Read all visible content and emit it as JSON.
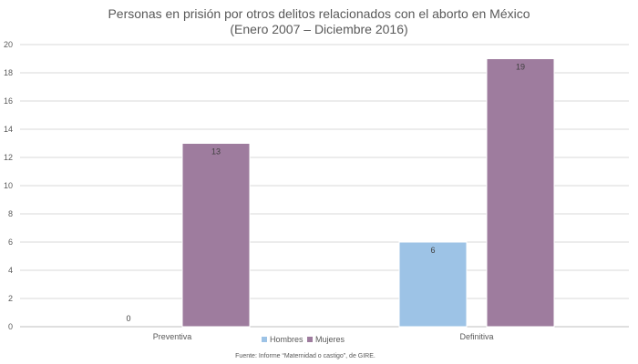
{
  "chart_data": {
    "type": "bar",
    "title": "Personas en prisión por otros delitos relacionados con el aborto en México",
    "subtitle": "(Enero 2007 – Diciembre 2016)",
    "categories": [
      "Preventiva",
      "Definitiva"
    ],
    "series": [
      {
        "name": "Hombres",
        "values": [
          0,
          6
        ],
        "color": "#9DC3E6"
      },
      {
        "name": "Mujeres",
        "values": [
          13,
          19
        ],
        "color": "#9E7C9E"
      }
    ],
    "data_labels": [
      [
        "0",
        "6"
      ],
      [
        "13",
        "19"
      ]
    ],
    "ylim": [
      0,
      20
    ],
    "yticks": [
      0,
      2,
      4,
      6,
      8,
      10,
      12,
      14,
      16,
      18,
      20
    ],
    "grid": true,
    "legend_position": "bottom",
    "xlabel": "",
    "ylabel": ""
  },
  "source_note": "Fuente: Informe “Maternidad o castigo”, de GIRE."
}
